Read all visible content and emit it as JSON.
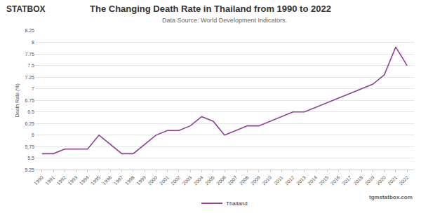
{
  "chart_data": {
    "type": "line",
    "title": "The Changing Death Rate in Thailand from 1990 to 2022",
    "subtitle": "Data Source: World Development Indicators.",
    "y_label": "Death Rate (%)",
    "categories": [
      "1990",
      "1991",
      "1992",
      "1993",
      "1994",
      "1995",
      "1996",
      "1997",
      "1998",
      "1999",
      "2000",
      "2001",
      "2002",
      "2003",
      "2004",
      "2005",
      "2006",
      "2007",
      "2008",
      "2009",
      "2010",
      "2011",
      "2012",
      "2013",
      "2014",
      "2015",
      "2016",
      "2017",
      "2018",
      "2019",
      "2020",
      "2021",
      "2022"
    ],
    "series": [
      {
        "name": "Thailand",
        "color": "#8e3f96",
        "line_style": "solid",
        "values": [
          5.6,
          5.6,
          5.7,
          5.7,
          5.7,
          6.0,
          5.8,
          5.6,
          5.6,
          5.8,
          6.0,
          6.1,
          6.1,
          6.2,
          6.4,
          6.3,
          6.0,
          6.1,
          6.2,
          6.2,
          6.3,
          6.4,
          6.5,
          6.5,
          6.6,
          6.7,
          6.8,
          6.9,
          7.0,
          7.1,
          7.3,
          7.9,
          7.5
        ]
      }
    ],
    "ylim": [
      5.25,
      8.25
    ],
    "yticks": [
      5.25,
      5.5,
      5.75,
      6,
      6.25,
      6.5,
      6.75,
      7,
      7.25,
      7.5,
      7.75,
      8,
      8.25
    ],
    "grid": true,
    "legend": "bottom",
    "logo": "STATBOX",
    "watermark": "tgmstatbox.com"
  }
}
